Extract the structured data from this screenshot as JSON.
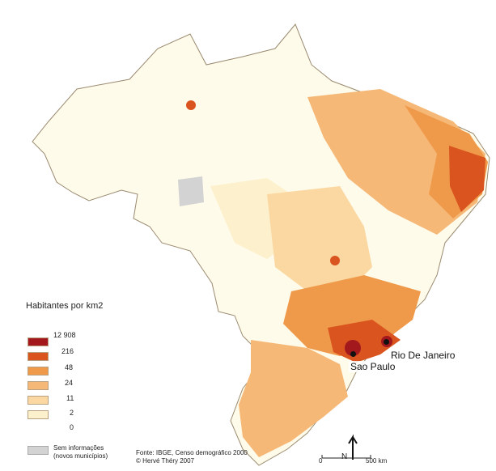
{
  "legend": {
    "title": "Habitantes por km2",
    "classes": [
      {
        "label": "12 908",
        "color": "#a3181c"
      },
      {
        "label": "216",
        "color": "#d9541e"
      },
      {
        "label": "48",
        "color": "#ef9a4a"
      },
      {
        "label": "24",
        "color": "#f6b877"
      },
      {
        "label": "11",
        "color": "#fbd8a2"
      },
      {
        "label": "2",
        "color": "#fdf0cd"
      },
      {
        "label": "0",
        "color": "#fffbea"
      }
    ],
    "no_info": {
      "line1": "Sem informações",
      "line2": "(novos municípios)",
      "color": "#d3d3d3"
    }
  },
  "source": {
    "line1": "Fonte: IBGE, Censo demográfico 2000",
    "line2": "© Hervé Théry 2007"
  },
  "cities": {
    "sao_paulo": "Sao Paulo",
    "rio": "Rio De Janeiro"
  },
  "scale": {
    "start": "0",
    "end": "500 km",
    "north": "N"
  }
}
